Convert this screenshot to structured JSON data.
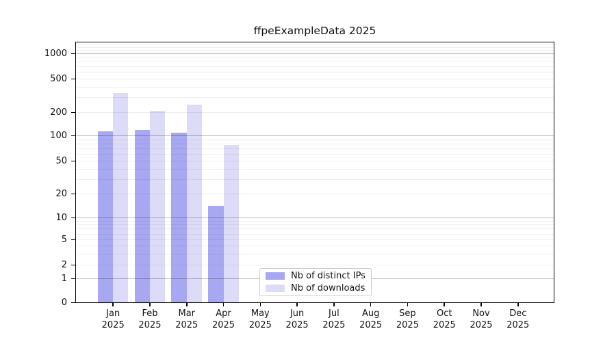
{
  "chart_data": {
    "type": "bar",
    "title": "ffpeExampleData 2025",
    "categories": [
      "Jan",
      "Feb",
      "Mar",
      "Apr",
      "May",
      "Jun",
      "Jul",
      "Aug",
      "Sep",
      "Oct",
      "Nov",
      "Dec"
    ],
    "x_axis": {
      "tick_label_year": "2025"
    },
    "y_axis": {
      "scale": "log-like",
      "ticks": [
        0,
        1,
        2,
        5,
        10,
        20,
        50,
        100,
        200,
        500,
        1000
      ],
      "ylim": [
        0,
        1400
      ],
      "grid": "horizontal, major and minor"
    },
    "series": [
      {
        "name": "Nb of distinct IPs",
        "color": "#a8a8f2",
        "values": [
          115,
          120,
          110,
          14,
          null,
          null,
          null,
          null,
          null,
          null,
          null,
          null
        ]
      },
      {
        "name": "Nb of downloads",
        "color": "#dcdcf9",
        "values": [
          340,
          210,
          250,
          78,
          null,
          null,
          null,
          null,
          null,
          null,
          null,
          null
        ]
      }
    ],
    "legend": {
      "entries": [
        "Nb of distinct IPs",
        "Nb of downloads"
      ],
      "position": "bottom-center"
    },
    "colors": {
      "background": "#ffffff",
      "spine": "#000000",
      "major_grid": "#b7b7b7",
      "minor_grid": "#eeeeee"
    }
  }
}
